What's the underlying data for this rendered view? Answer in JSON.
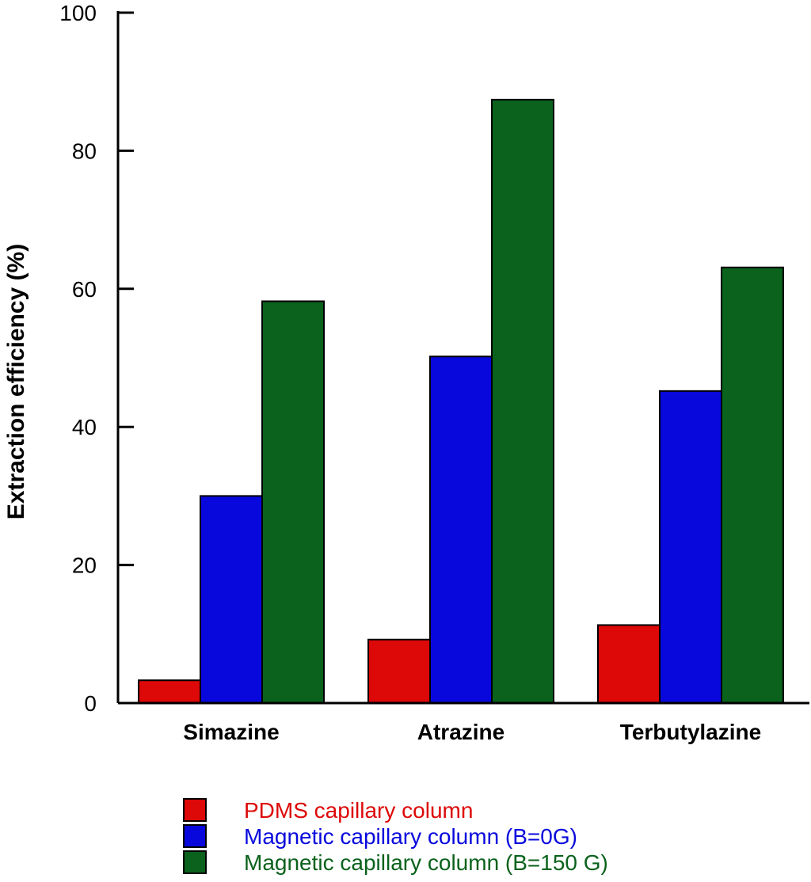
{
  "chart_data": {
    "type": "bar",
    "title": "",
    "xlabel": "",
    "ylabel": "Extraction efficiency (%)",
    "ylim": [
      0,
      100
    ],
    "yticks": [
      "0",
      "20",
      "40",
      "60",
      "80",
      "100"
    ],
    "grid": false,
    "legend_position": "bottom",
    "categories": [
      "Simazine",
      "Atrazine",
      "Terbutylazine"
    ],
    "series": [
      {
        "name": "PDMS capillary column",
        "color": "#dd0808",
        "values": [
          3.3,
          9.2,
          11.3
        ]
      },
      {
        "name": "Magnetic capillary column (B=0G)",
        "color": "#0808dd",
        "values": [
          30.0,
          50.2,
          45.2
        ]
      },
      {
        "name": "Magnetic capillary column (B=150 G)",
        "color": "#0a621c",
        "values": [
          58.2,
          87.4,
          63.1
        ]
      }
    ]
  }
}
